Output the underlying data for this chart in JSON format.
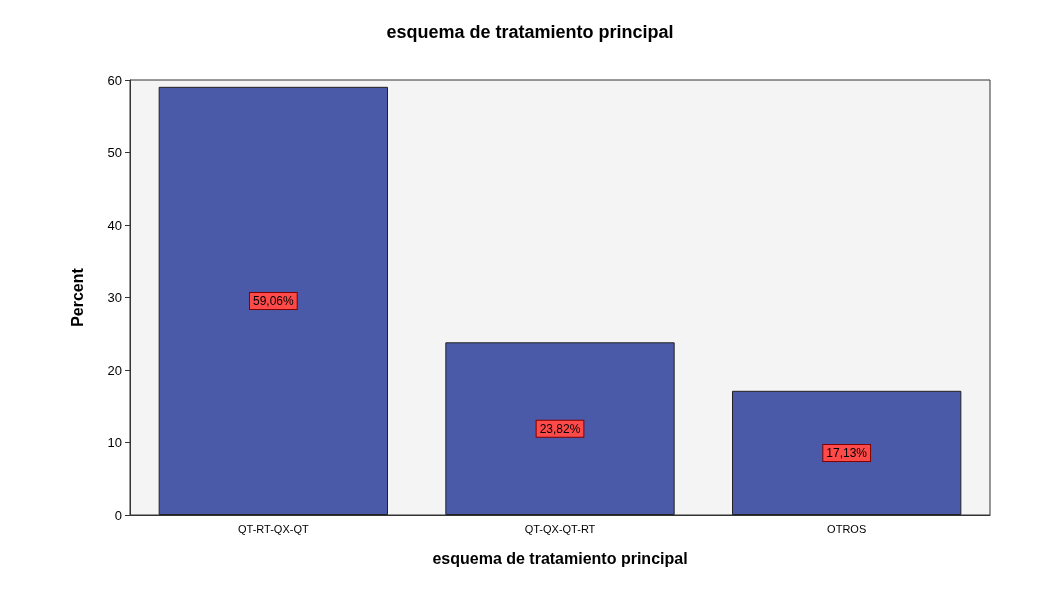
{
  "chart_data": {
    "type": "bar",
    "title": "esquema de tratamiento principal",
    "xlabel": "esquema de tratamiento principal",
    "ylabel": "Percent",
    "categories": [
      "QT-RT-QX-QT",
      "QT-QX-QT-RT",
      "OTROS"
    ],
    "values": [
      59.06,
      23.82,
      17.13
    ],
    "value_labels": [
      "59,06%",
      "23,82%",
      "17,13%"
    ],
    "color": "#4a5aa8",
    "ylim": [
      0,
      60
    ],
    "yticks": [
      0,
      10,
      20,
      30,
      40,
      50,
      60
    ],
    "grid": false
  }
}
